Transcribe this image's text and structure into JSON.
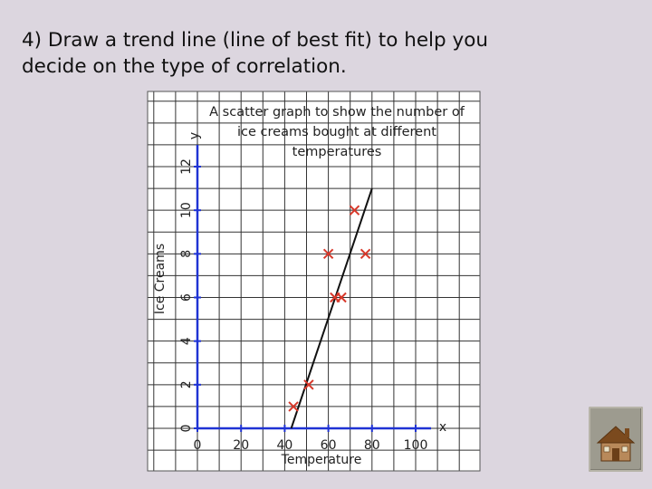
{
  "slide": {
    "title_line1": "4) Draw a trend line (line of best fit) to help you",
    "title_line2": "decide on the type of correlation."
  },
  "chart_data": {
    "type": "scatter",
    "title_lines": [
      "A scatter graph to show the number of",
      "ice creams bought at different",
      "temperatures"
    ],
    "xlabel": "Temperature",
    "ylabel": "Ice Creams",
    "x_axis_letter": "x",
    "y_axis_letter": "y",
    "xlim": [
      0,
      100
    ],
    "ylim": [
      0,
      12
    ],
    "x_ticks": [
      0,
      20,
      40,
      60,
      80,
      100
    ],
    "y_ticks": [
      0,
      2,
      4,
      6,
      8,
      10,
      12
    ],
    "points": [
      {
        "x": 44,
        "y": 1
      },
      {
        "x": 51,
        "y": 2
      },
      {
        "x": 63,
        "y": 6
      },
      {
        "x": 66,
        "y": 6
      },
      {
        "x": 60,
        "y": 8
      },
      {
        "x": 77,
        "y": 8
      },
      {
        "x": 72,
        "y": 10
      }
    ],
    "trend_line": {
      "x1": 43,
      "y1": 0,
      "x2": 80,
      "y2": 11
    },
    "grid": true,
    "colors": {
      "points": "#d8382a",
      "axes": "#1f33d4",
      "grid": "#333333",
      "trend_line": "#111111"
    }
  },
  "nav": {
    "home_icon": "home-icon"
  }
}
